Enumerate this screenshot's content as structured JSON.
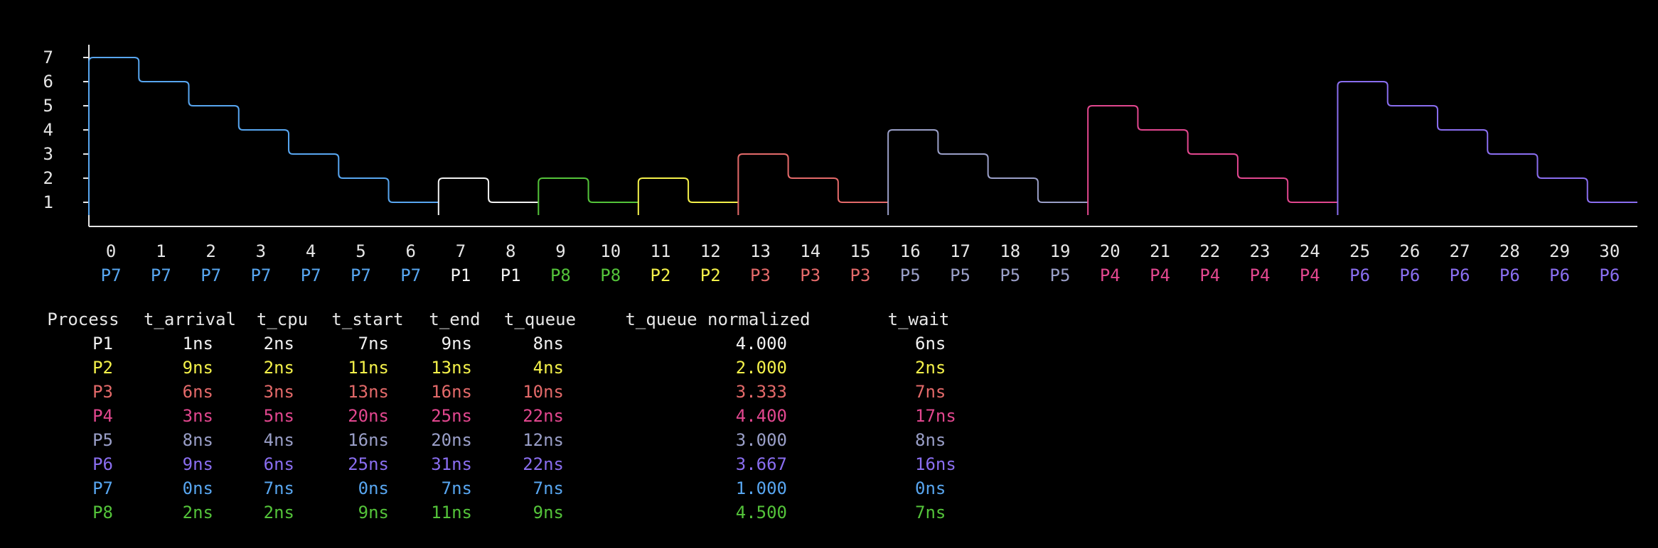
{
  "colors": {
    "background": "#000000",
    "axis": "#e6e6e6",
    "P1": "#f2f2f2",
    "P2": "#f4f14a",
    "P3": "#e46a6a",
    "P4": "#e2478f",
    "P5": "#9a9fc8",
    "P6": "#8a6ef0",
    "P7": "#58a6f0",
    "P8": "#54c43a"
  },
  "chart_data": {
    "type": "line",
    "x_ticks": [
      "0",
      "1",
      "2",
      "3",
      "4",
      "5",
      "6",
      "7",
      "8",
      "9",
      "10",
      "11",
      "12",
      "13",
      "14",
      "15",
      "16",
      "17",
      "18",
      "19",
      "20",
      "21",
      "22",
      "23",
      "24",
      "25",
      "26",
      "27",
      "28",
      "29",
      "30"
    ],
    "y_ticks": [
      "1",
      "2",
      "3",
      "4",
      "5",
      "6",
      "7"
    ],
    "ylim": [
      0,
      7
    ],
    "xlim": [
      0,
      31
    ],
    "slot_labels": [
      "P7",
      "P7",
      "P7",
      "P7",
      "P7",
      "P7",
      "P7",
      "P1",
      "P1",
      "P8",
      "P8",
      "P2",
      "P2",
      "P3",
      "P3",
      "P3",
      "P5",
      "P5",
      "P5",
      "P5",
      "P4",
      "P4",
      "P4",
      "P4",
      "P4",
      "P6",
      "P6",
      "P6",
      "P6",
      "P6",
      "P6"
    ],
    "series": [
      {
        "process": "P7",
        "start": 0,
        "values": [
          7,
          6,
          5,
          4,
          3,
          2,
          1
        ]
      },
      {
        "process": "P1",
        "start": 7,
        "values": [
          2,
          1
        ]
      },
      {
        "process": "P8",
        "start": 9,
        "values": [
          2,
          1
        ]
      },
      {
        "process": "P2",
        "start": 11,
        "values": [
          2,
          1
        ]
      },
      {
        "process": "P3",
        "start": 13,
        "values": [
          3,
          2,
          1
        ]
      },
      {
        "process": "P5",
        "start": 16,
        "values": [
          4,
          3,
          2,
          1
        ]
      },
      {
        "process": "P4",
        "start": 20,
        "values": [
          5,
          4,
          3,
          2,
          1
        ]
      },
      {
        "process": "P6",
        "start": 25,
        "values": [
          6,
          5,
          4,
          3,
          2,
          1
        ]
      }
    ]
  },
  "table": {
    "headers": {
      "process": "Process",
      "arrival": "t_arrival",
      "cpu": "t_cpu",
      "start": "t_start",
      "end": "t_end",
      "queue": "t_queue",
      "qnorm": "t_queue normalized",
      "wait": "t_wait"
    },
    "rows": [
      {
        "process": "P1",
        "arrival": "1ns",
        "cpu": "2ns",
        "start": "7ns",
        "end": "9ns",
        "queue": "8ns",
        "qnorm": "4.000",
        "wait": "6ns"
      },
      {
        "process": "P2",
        "arrival": "9ns",
        "cpu": "2ns",
        "start": "11ns",
        "end": "13ns",
        "queue": "4ns",
        "qnorm": "2.000",
        "wait": "2ns"
      },
      {
        "process": "P3",
        "arrival": "6ns",
        "cpu": "3ns",
        "start": "13ns",
        "end": "16ns",
        "queue": "10ns",
        "qnorm": "3.333",
        "wait": "7ns"
      },
      {
        "process": "P4",
        "arrival": "3ns",
        "cpu": "5ns",
        "start": "20ns",
        "end": "25ns",
        "queue": "22ns",
        "qnorm": "4.400",
        "wait": "17ns"
      },
      {
        "process": "P5",
        "arrival": "8ns",
        "cpu": "4ns",
        "start": "16ns",
        "end": "20ns",
        "queue": "12ns",
        "qnorm": "3.000",
        "wait": "8ns"
      },
      {
        "process": "P6",
        "arrival": "9ns",
        "cpu": "6ns",
        "start": "25ns",
        "end": "31ns",
        "queue": "22ns",
        "qnorm": "3.667",
        "wait": "16ns"
      },
      {
        "process": "P7",
        "arrival": "0ns",
        "cpu": "7ns",
        "start": "0ns",
        "end": "7ns",
        "queue": "7ns",
        "qnorm": "1.000",
        "wait": "0ns"
      },
      {
        "process": "P8",
        "arrival": "2ns",
        "cpu": "2ns",
        "start": "9ns",
        "end": "11ns",
        "queue": "9ns",
        "qnorm": "4.500",
        "wait": "7ns"
      }
    ]
  }
}
